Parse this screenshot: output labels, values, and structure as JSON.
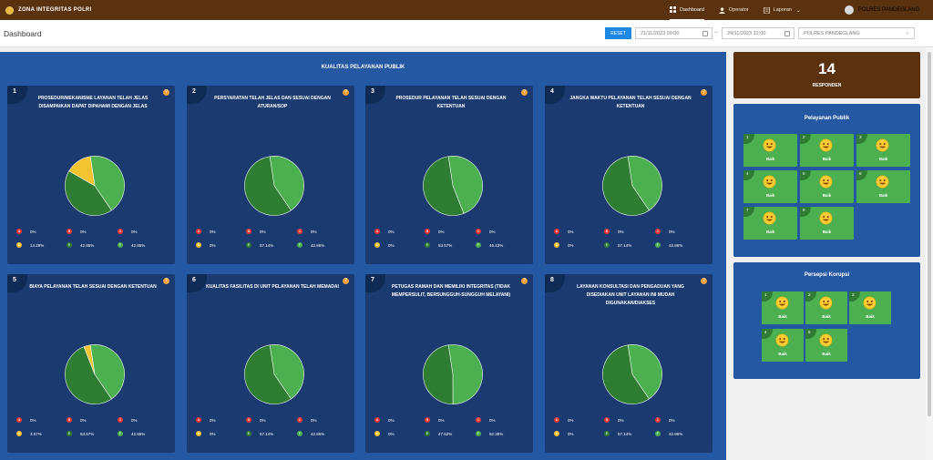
{
  "app": {
    "title": "ZONA INTEGRITAS POLRI"
  },
  "nav": {
    "items": [
      {
        "label": "Dashboard",
        "active": true,
        "icon": "dashboard-icon"
      },
      {
        "label": "Operator",
        "active": false,
        "icon": "user-icon"
      },
      {
        "label": "Laporan",
        "active": false,
        "icon": "document-icon"
      }
    ],
    "user": "POLRES PANDEGLANG"
  },
  "toolbar": {
    "page_title": "Dashboard",
    "reset_label": "RESET",
    "date_from": "21/11/2023 00:00",
    "date_separator": "→",
    "date_to": "24/11/2023 12:00",
    "unit_select": "POLRES PANDEGLANG"
  },
  "colors": {
    "A": "#e53935",
    "B": "#e53935",
    "C": "#e53935",
    "D": "#f4c430",
    "E": "#2e7d32",
    "F": "#4caf50"
  },
  "main": {
    "title": "KUALITAS PELAYANAN PUBLIK",
    "questions": [
      {
        "num": "1",
        "title": "PROSEDUR/MEKANISME LAYANAN TELAH JELAS DISAMPAIKAN DAPAT DIPAHAMI DENGAN JELAS",
        "legend": [
          {
            "key": "A",
            "label": "0%"
          },
          {
            "key": "B",
            "label": "0%"
          },
          {
            "key": "C",
            "label": "0%"
          },
          {
            "key": "D",
            "label": "14.29%"
          },
          {
            "key": "E",
            "label": "42.86%"
          },
          {
            "key": "F",
            "label": "42.86%"
          }
        ]
      },
      {
        "num": "2",
        "title": "PERSYARATAN TELAH JELAS DAN SESUAI DENGAN ATURAN/SOP",
        "legend": [
          {
            "key": "A",
            "label": "0%"
          },
          {
            "key": "B",
            "label": "0%"
          },
          {
            "key": "C",
            "label": "0%"
          },
          {
            "key": "D",
            "label": "0%"
          },
          {
            "key": "E",
            "label": "57.14%"
          },
          {
            "key": "F",
            "label": "42.86%"
          }
        ]
      },
      {
        "num": "3",
        "title": "PROSEDUR PELAYANAN TELAH SESUAI DENGAN KETENTUAN",
        "legend": [
          {
            "key": "A",
            "label": "0%"
          },
          {
            "key": "B",
            "label": "0%"
          },
          {
            "key": "C",
            "label": "0%"
          },
          {
            "key": "D",
            "label": "0%"
          },
          {
            "key": "E",
            "label": "53.57%"
          },
          {
            "key": "F",
            "label": "46.43%"
          }
        ]
      },
      {
        "num": "4",
        "title": "JANGKA WAKTU PELAYANAN TELAH SESUAI DENGAN KETENTUAN",
        "legend": [
          {
            "key": "A",
            "label": "0%"
          },
          {
            "key": "B",
            "label": "0%"
          },
          {
            "key": "C",
            "label": "0%"
          },
          {
            "key": "D",
            "label": "0%"
          },
          {
            "key": "E",
            "label": "57.14%"
          },
          {
            "key": "F",
            "label": "42.86%"
          }
        ]
      },
      {
        "num": "5",
        "title": "BIAYA PELAYANAN TELAH SESUAI DENGAN KETENTUAN",
        "legend": [
          {
            "key": "A",
            "label": "0%"
          },
          {
            "key": "B",
            "label": "0%"
          },
          {
            "key": "C",
            "label": "0%"
          },
          {
            "key": "D",
            "label": "3.57%"
          },
          {
            "key": "E",
            "label": "53.57%"
          },
          {
            "key": "F",
            "label": "42.86%"
          }
        ]
      },
      {
        "num": "6",
        "title": "KUALITAS FASILITAS DI UNIT PELAYANAN TELAH MEMADAI",
        "legend": [
          {
            "key": "A",
            "label": "0%"
          },
          {
            "key": "B",
            "label": "0%"
          },
          {
            "key": "C",
            "label": "0%"
          },
          {
            "key": "D",
            "label": "0%"
          },
          {
            "key": "E",
            "label": "57.14%"
          },
          {
            "key": "F",
            "label": "42.86%"
          }
        ]
      },
      {
        "num": "7",
        "title": "PETUGAS RAMAH DAN MEMILIKI INTEGRITAS (TIDAK MEMPERSULIT, BERSUNGGUH-SUNGGUH MELAYANI)",
        "legend": [
          {
            "key": "A",
            "label": "0%"
          },
          {
            "key": "B",
            "label": "0%"
          },
          {
            "key": "C",
            "label": "0%"
          },
          {
            "key": "D",
            "label": "0%"
          },
          {
            "key": "E",
            "label": "47.62%"
          },
          {
            "key": "F",
            "label": "52.38%"
          }
        ]
      },
      {
        "num": "8",
        "title": "LAYANAN KONSULTASI DAN PENGADUAN YANG DISEDIAKAN UNIT LAYANAN INI MUDAH DIGUNAKAN/DIAKSES",
        "legend": [
          {
            "key": "A",
            "label": "0%"
          },
          {
            "key": "B",
            "label": "0%"
          },
          {
            "key": "C",
            "label": "0%"
          },
          {
            "key": "D",
            "label": "0%"
          },
          {
            "key": "E",
            "label": "57.14%"
          },
          {
            "key": "F",
            "label": "42.86%"
          }
        ]
      }
    ]
  },
  "chart_data": [
    {
      "type": "pie",
      "categories": [
        "A",
        "B",
        "C",
        "D",
        "E",
        "F"
      ],
      "values": [
        0,
        0,
        0,
        14.29,
        42.86,
        42.86
      ]
    },
    {
      "type": "pie",
      "categories": [
        "A",
        "B",
        "C",
        "D",
        "E",
        "F"
      ],
      "values": [
        0,
        0,
        0,
        0,
        57.14,
        42.86
      ]
    },
    {
      "type": "pie",
      "categories": [
        "A",
        "B",
        "C",
        "D",
        "E",
        "F"
      ],
      "values": [
        0,
        0,
        0,
        0,
        53.57,
        46.43
      ]
    },
    {
      "type": "pie",
      "categories": [
        "A",
        "B",
        "C",
        "D",
        "E",
        "F"
      ],
      "values": [
        0,
        0,
        0,
        0,
        57.14,
        42.86
      ]
    },
    {
      "type": "pie",
      "categories": [
        "A",
        "B",
        "C",
        "D",
        "E",
        "F"
      ],
      "values": [
        0,
        0,
        0,
        3.57,
        53.57,
        42.86
      ]
    },
    {
      "type": "pie",
      "categories": [
        "A",
        "B",
        "C",
        "D",
        "E",
        "F"
      ],
      "values": [
        0,
        0,
        0,
        0,
        57.14,
        42.86
      ]
    },
    {
      "type": "pie",
      "categories": [
        "A",
        "B",
        "C",
        "D",
        "E",
        "F"
      ],
      "values": [
        0,
        0,
        0,
        0,
        47.62,
        52.38
      ]
    },
    {
      "type": "pie",
      "categories": [
        "A",
        "B",
        "C",
        "D",
        "E",
        "F"
      ],
      "values": [
        0,
        0,
        0,
        0,
        57.14,
        42.86
      ]
    }
  ],
  "responden": {
    "count": "14",
    "label": "RESPONDEN"
  },
  "pelayanan_publik": {
    "title": "Pelayanan Publik",
    "tiles": [
      {
        "num": "1",
        "label": "Baik"
      },
      {
        "num": "2",
        "label": "Baik"
      },
      {
        "num": "3",
        "label": "Baik"
      },
      {
        "num": "4",
        "label": "Baik"
      },
      {
        "num": "5",
        "label": "Baik"
      },
      {
        "num": "6",
        "label": "Baik"
      },
      {
        "num": "7",
        "label": "Baik"
      },
      {
        "num": "8",
        "label": "Baik"
      }
    ]
  },
  "persepsi_korupsi": {
    "title": "Persepsi Korupsi",
    "tiles": [
      {
        "num": "1",
        "label": "Baik"
      },
      {
        "num": "2",
        "label": "Baik"
      },
      {
        "num": "3",
        "label": "Baik"
      },
      {
        "num": "4",
        "label": "Baik"
      },
      {
        "num": "5",
        "label": "Baik"
      }
    ]
  }
}
